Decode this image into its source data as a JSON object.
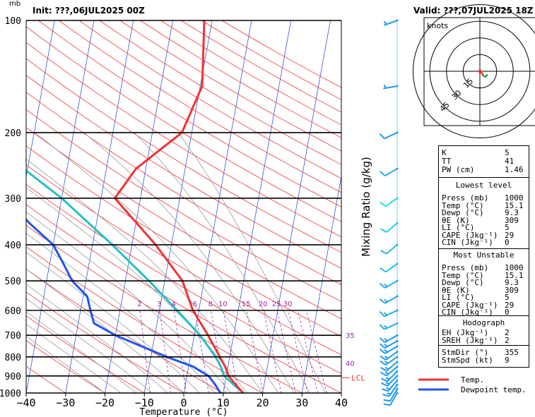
{
  "header": {
    "pressure_unit": "mb",
    "init": "Init: ???,06JUL2025 00Z",
    "valid": "Valid: ???,07JUL2025 18Z"
  },
  "chart_data": {
    "type": "line",
    "title": "",
    "xlabel": "Temperature (°C)",
    "ylabel": "",
    "y_scale": "log",
    "xlim": [
      -40,
      40
    ],
    "ylim": [
      1000,
      100
    ],
    "x_ticks": [
      -40,
      -30,
      -20,
      -10,
      0,
      10,
      20,
      30,
      40
    ],
    "y_ticks": [
      100,
      200,
      300,
      400,
      500,
      600,
      700,
      800,
      900,
      1000
    ],
    "mixing_ratio_label": "Mixing Ratio (g/kg)",
    "mixing_ratio_lines": [
      2,
      3,
      4,
      6,
      8,
      10,
      15,
      20,
      25,
      30,
      35,
      40
    ],
    "lcl_label": "LCL",
    "lcl_pressure": 910,
    "series": [
      {
        "name": "Temp.",
        "color": "#ee3333",
        "points": [
          [
            1000,
            15.1
          ],
          [
            950,
            12.8
          ],
          [
            900,
            10.6
          ],
          [
            850,
            9.3
          ],
          [
            800,
            7.5
          ],
          [
            700,
            3.5
          ],
          [
            600,
            -1.5
          ],
          [
            500,
            -5.5
          ],
          [
            400,
            -14
          ],
          [
            300,
            -26.5
          ],
          [
            250,
            -22.5
          ],
          [
            200,
            -12.5
          ],
          [
            150,
            -9.5
          ],
          [
            100,
            -12
          ]
        ]
      },
      {
        "name": "Dewpoint temp.",
        "color": "#2255ee",
        "points": [
          [
            1000,
            9.3
          ],
          [
            950,
            7.6
          ],
          [
            900,
            5.5
          ],
          [
            850,
            1.2
          ],
          [
            800,
            -6
          ],
          [
            700,
            -20
          ],
          [
            650,
            -26
          ],
          [
            600,
            -27.5
          ],
          [
            550,
            -29
          ],
          [
            500,
            -33.5
          ],
          [
            450,
            -36.5
          ],
          [
            400,
            -40
          ],
          [
            350,
            -47
          ],
          [
            300,
            -54
          ],
          [
            250,
            -63
          ],
          [
            200,
            -75
          ],
          [
            150,
            -81
          ],
          [
            100,
            -89
          ]
        ]
      },
      {
        "name": "",
        "color": "#22c2c2",
        "points": [
          [
            1000,
            15.1
          ],
          [
            950,
            12.3
          ],
          [
            900,
            9.5
          ],
          [
            850,
            8.2
          ],
          [
            800,
            6.4
          ],
          [
            700,
            1.5
          ],
          [
            600,
            -5.5
          ],
          [
            500,
            -14
          ],
          [
            400,
            -25
          ],
          [
            300,
            -40
          ],
          [
            250,
            -51
          ],
          [
            200,
            -64
          ],
          [
            150,
            -80
          ],
          [
            100,
            -99
          ]
        ]
      }
    ],
    "wind_barbs": [
      {
        "p": 1000,
        "spd": 12,
        "dir": 210,
        "color": "#2299ee"
      },
      {
        "p": 975,
        "spd": 14,
        "dir": 210,
        "color": "#2299ee"
      },
      {
        "p": 950,
        "spd": 16,
        "dir": 215,
        "color": "#2299ee"
      },
      {
        "p": 925,
        "spd": 17,
        "dir": 220,
        "color": "#2299ee"
      },
      {
        "p": 900,
        "spd": 18,
        "dir": 225,
        "color": "#2299ee"
      },
      {
        "p": 875,
        "spd": 18,
        "dir": 225,
        "color": "#2299ee"
      },
      {
        "p": 850,
        "spd": 17,
        "dir": 230,
        "color": "#2299ee"
      },
      {
        "p": 825,
        "spd": 16,
        "dir": 230,
        "color": "#2299ee"
      },
      {
        "p": 800,
        "spd": 16,
        "dir": 235,
        "color": "#2299ee"
      },
      {
        "p": 775,
        "spd": 15,
        "dir": 235,
        "color": "#2299ee"
      },
      {
        "p": 750,
        "spd": 15,
        "dir": 240,
        "color": "#2299ee"
      },
      {
        "p": 725,
        "spd": 15,
        "dir": 240,
        "color": "#2299ee"
      },
      {
        "p": 700,
        "spd": 15,
        "dir": 240,
        "color": "#2299ee"
      },
      {
        "p": 650,
        "spd": 15,
        "dir": 245,
        "color": "#22aaee"
      },
      {
        "p": 600,
        "spd": 15,
        "dir": 245,
        "color": "#22aaee"
      },
      {
        "p": 550,
        "spd": 15,
        "dir": 240,
        "color": "#22aaee"
      },
      {
        "p": 500,
        "spd": 15,
        "dir": 240,
        "color": "#22aaee"
      },
      {
        "p": 450,
        "spd": 10,
        "dir": 235,
        "color": "#22bbee"
      },
      {
        "p": 400,
        "spd": 10,
        "dir": 230,
        "color": "#22bbee"
      },
      {
        "p": 350,
        "spd": 10,
        "dir": 230,
        "color": "#22ccee"
      },
      {
        "p": 300,
        "spd": 10,
        "dir": 235,
        "color": "#22dddd"
      },
      {
        "p": 250,
        "spd": 10,
        "dir": 240,
        "color": "#22aaee"
      },
      {
        "p": 200,
        "spd": 10,
        "dir": 245,
        "color": "#2299ee"
      },
      {
        "p": 150,
        "spd": 5,
        "dir": 260,
        "color": "#2299ee"
      },
      {
        "p": 100,
        "spd": 5,
        "dir": 250,
        "color": "#2299ee"
      }
    ]
  },
  "hodograph": {
    "unit_label": "knots",
    "ring_labels": [
      "15",
      "30",
      "45"
    ],
    "points": [
      [
        0,
        0
      ],
      [
        2,
        -2
      ],
      [
        3,
        -4
      ],
      [
        5,
        -5
      ],
      [
        7,
        -3
      ]
    ]
  },
  "indices": {
    "k": {
      "label": "K",
      "value": "5"
    },
    "tt": {
      "label": "TT",
      "value": "41"
    },
    "pw": {
      "label": "PW (cm)",
      "value": "1.46"
    },
    "lowest_title": "Lowest level",
    "lowest": [
      {
        "label": "Press (mb)",
        "value": "1000"
      },
      {
        "label": "Temp (°C)",
        "value": "15.1"
      },
      {
        "label": "Dewp (°C)",
        "value": "9.3"
      },
      {
        "label": "θE (K)",
        "value": "309"
      },
      {
        "label": "LI (°C)",
        "value": "5"
      },
      {
        "label": "CAPE (Jkg⁻¹)",
        "value": "29"
      },
      {
        "label": "CIN (Jkg⁻¹)",
        "value": "0"
      }
    ],
    "unstable_title": "Most Unstable",
    "unstable": [
      {
        "label": "Press (mb)",
        "value": "1000"
      },
      {
        "label": "Temp (°C)",
        "value": "15.1"
      },
      {
        "label": "Dewp (°C)",
        "value": "9.3"
      },
      {
        "label": "θE (K)",
        "value": "309"
      },
      {
        "label": "LI (°C)",
        "value": "5"
      },
      {
        "label": "CAPE (Jkg⁻¹)",
        "value": "29"
      },
      {
        "label": "CIN (Jkg⁻¹)",
        "value": "0"
      }
    ],
    "hodo_title": "Hodograph",
    "hodo": [
      {
        "label": "EH (Jkg⁻¹)",
        "value": "2"
      },
      {
        "label": "SREH (Jkg⁻¹)",
        "value": "2"
      }
    ],
    "storm": [
      {
        "label": "StmDir (°)",
        "value": "355"
      },
      {
        "label": "StmSpd (kt)",
        "value": "9"
      }
    ]
  },
  "legend": {
    "temp_label": "Temp.",
    "dew_label": "Dewpoint temp."
  }
}
